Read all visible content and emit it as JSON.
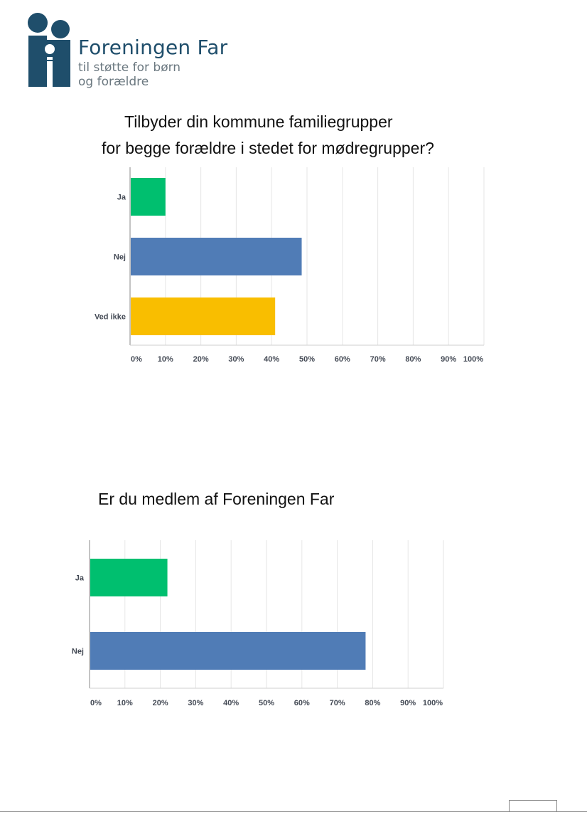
{
  "header": {
    "logo_name": "Foreningen Far",
    "logo_tagline_1": "til støtte for børn",
    "logo_tagline_2": "og forældre",
    "brand_color": "#1f4e6b"
  },
  "question1": {
    "title_line1": "Tilbyder din kommune familiegrupper",
    "title_line2": "for begge forældre i stedet for mødregrupper?"
  },
  "question2": {
    "title": "Er du medlem af Foreningen Far"
  },
  "chart_data": [
    {
      "type": "bar",
      "orientation": "horizontal",
      "title": "Tilbyder din kommune familiegrupper for begge forældre i stedet for mødregrupper?",
      "categories": [
        "Ja",
        "Nej",
        "Ved ikke"
      ],
      "values": [
        10,
        48.5,
        41
      ],
      "colors": [
        "#00bf6f",
        "#507cb6",
        "#f9be00"
      ],
      "xlim": [
        0,
        100
      ],
      "xticks": [
        "0%",
        "10%",
        "20%",
        "30%",
        "40%",
        "50%",
        "60%",
        "70%",
        "80%",
        "90%",
        "100%"
      ],
      "grid": true
    },
    {
      "type": "bar",
      "orientation": "horizontal",
      "title": "Er du medlem af Foreningen Far",
      "categories": [
        "Ja",
        "Nej"
      ],
      "values": [
        22,
        78
      ],
      "colors": [
        "#00bf6f",
        "#507cb6"
      ],
      "xlim": [
        0,
        100
      ],
      "xticks": [
        "0%",
        "10%",
        "20%",
        "30%",
        "40%",
        "50%",
        "60%",
        "70%",
        "80%",
        "90%",
        "100%"
      ],
      "grid": true
    }
  ]
}
